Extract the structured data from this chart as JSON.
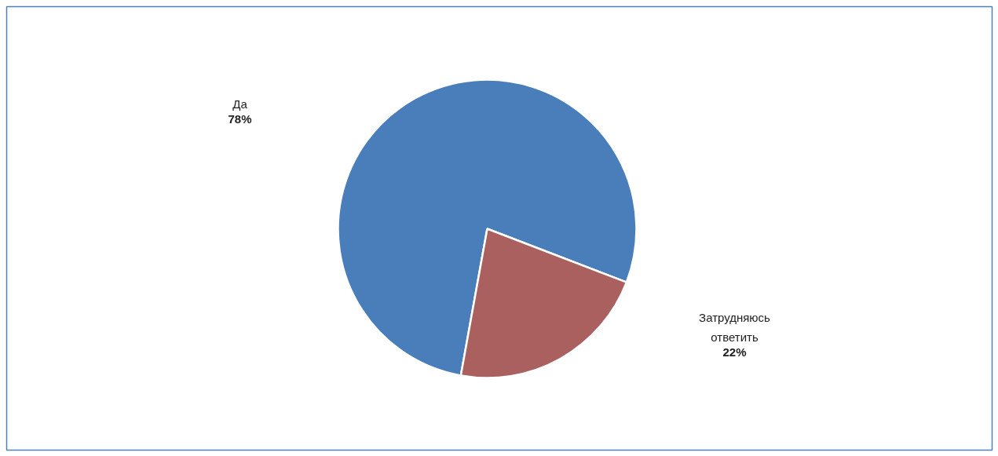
{
  "chart_data": {
    "type": "pie",
    "categories": [
      "Да",
      "Затрудняюсь ответить"
    ],
    "values": [
      78,
      22
    ],
    "colors": [
      "#4a7ebb",
      "#a9605e"
    ],
    "value_labels": [
      "78%",
      "22%"
    ]
  }
}
